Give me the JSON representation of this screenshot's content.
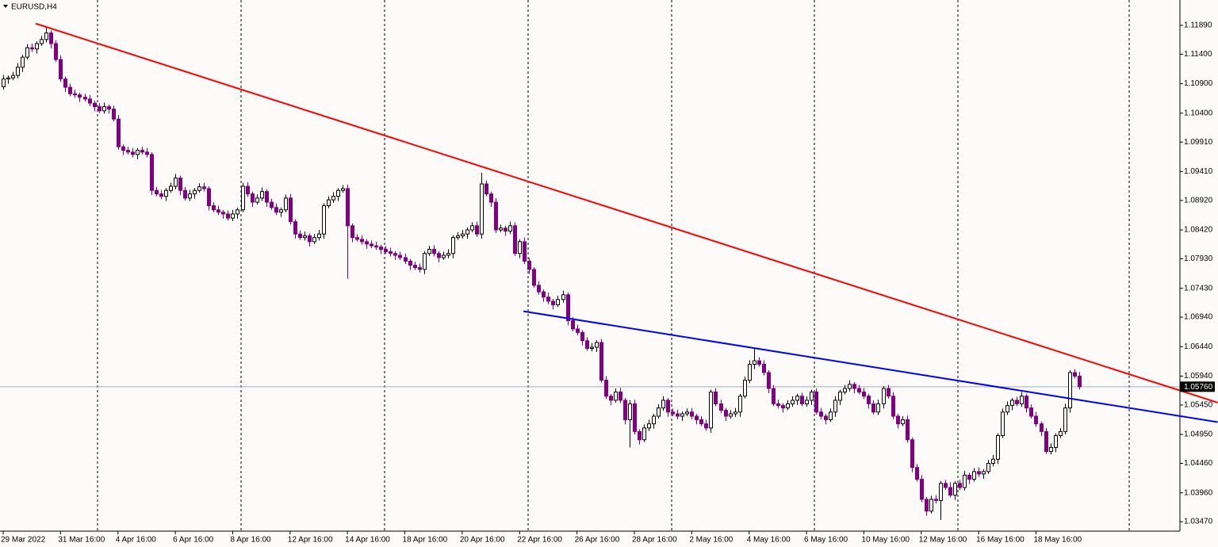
{
  "chart_data": {
    "type": "candlestick",
    "title": "EURUSD,H4",
    "categories": [
      "29 Mar 2022",
      null,
      null,
      null,
      null,
      null,
      null,
      null,
      null,
      null,
      null,
      null,
      "31 Mar 16:00",
      null,
      null,
      null,
      null,
      null,
      null,
      null,
      null,
      null,
      null,
      null,
      "4 Apr 16:00",
      null,
      null,
      null,
      null,
      null,
      null,
      null,
      null,
      null,
      null,
      null,
      "6 Apr 16:00",
      null,
      null,
      null,
      null,
      null,
      null,
      null,
      null,
      null,
      null,
      null,
      "8 Apr 16:00",
      null,
      null,
      null,
      null,
      null,
      null,
      null,
      null,
      null,
      null,
      null,
      "12 Apr 16:00",
      null,
      null,
      null,
      null,
      null,
      null,
      null,
      null,
      null,
      null,
      null,
      "14 Apr 16:00",
      null,
      null,
      null,
      null,
      null,
      null,
      null,
      null,
      null,
      null,
      null,
      "18 Apr 16:00",
      null,
      null,
      null,
      null,
      null,
      null,
      null,
      null,
      null,
      null,
      null,
      "20 Apr 16:00",
      null,
      null,
      null,
      null,
      null,
      null,
      null,
      null,
      null,
      null,
      null,
      "22 Apr 16:00",
      null,
      null,
      null,
      null,
      null,
      null,
      null,
      null,
      null,
      null,
      null,
      "26 Apr 16:00",
      null,
      null,
      null,
      null,
      null,
      null,
      null,
      null,
      null,
      null,
      null,
      "28 Apr 16:00",
      null,
      null,
      null,
      null,
      null,
      null,
      null,
      null,
      null,
      null,
      null,
      "2 May 16:00",
      null,
      null,
      null,
      null,
      null,
      null,
      null,
      null,
      null,
      null,
      null,
      "4 May 16:00",
      null,
      null,
      null,
      null,
      null,
      null,
      null,
      null,
      null,
      null,
      null,
      "6 May 16:00",
      null,
      null,
      null,
      null,
      null,
      null,
      null,
      null,
      null,
      null,
      null,
      "10 May 16:00",
      null,
      null,
      null,
      null,
      null,
      null,
      null,
      null,
      null,
      null,
      null,
      "12 May 16:00",
      null,
      null,
      null,
      null,
      null,
      null,
      null,
      null,
      null,
      null,
      null,
      "16 May 16:00",
      null,
      null,
      null,
      null,
      null,
      null,
      null,
      null,
      null,
      null,
      null,
      "18 May 16:00",
      null,
      null,
      null,
      null,
      null,
      null,
      null,
      null,
      null
    ],
    "open": [
      1.1085,
      1.1098,
      1.11,
      1.1104,
      1.1118,
      1.1135,
      1.1151,
      1.1149,
      1.1158,
      1.1165,
      1.1176,
      1.1158,
      1.1131,
      1.1098,
      1.1084,
      1.1073,
      1.1071,
      1.1067,
      1.1064,
      1.1057,
      1.1051,
      1.1044,
      1.1051,
      1.1047,
      1.103,
      1.0983,
      1.0977,
      1.0974,
      1.097,
      1.0977,
      1.0974,
      1.097,
      1.0909,
      1.0903,
      1.0899,
      1.0909,
      1.0916,
      1.093,
      1.0909,
      1.0896,
      1.0903,
      1.0909,
      1.0915,
      1.0912,
      1.0883,
      1.0876,
      1.0872,
      1.0869,
      1.0862,
      1.0869,
      1.0876,
      1.0916,
      1.0903,
      1.0889,
      1.0896,
      1.0907,
      1.0889,
      1.088,
      1.0872,
      1.0876,
      1.0896,
      1.0856,
      1.0835,
      1.0829,
      1.0832,
      1.0822,
      1.0829,
      1.0835,
      1.0883,
      1.0893,
      1.0899,
      1.0909,
      1.0912,
      1.0849,
      1.0829,
      1.0826,
      1.0822,
      1.0818,
      1.0815,
      1.0813,
      1.0809,
      1.0805,
      1.0802,
      1.0799,
      1.0795,
      1.0789,
      1.0782,
      1.0778,
      1.0775,
      1.0802,
      1.0809,
      1.0802,
      1.0795,
      1.0799,
      1.0802,
      1.0829,
      1.0832,
      1.0835,
      1.0842,
      1.0849,
      1.0835,
      1.092,
      1.0903,
      1.0889,
      1.0842,
      1.0845,
      1.084,
      1.0849,
      1.0802,
      1.0822,
      1.0789,
      1.0775,
      1.0748,
      1.0737,
      1.0728,
      1.0721,
      1.0715,
      1.0724,
      1.0732,
      1.0688,
      1.0674,
      1.0668,
      1.0654,
      1.0641,
      1.0643,
      1.0651,
      1.0587,
      1.056,
      1.0553,
      1.0567,
      1.0553,
      1.052,
      1.0547,
      1.05,
      1.0486,
      1.0506,
      1.0513,
      1.0526,
      1.054,
      1.0553,
      1.0533,
      1.053,
      1.0526,
      1.053,
      1.0533,
      1.0526,
      1.052,
      1.0513,
      1.0506,
      1.0567,
      1.0547,
      1.0536,
      1.0526,
      1.053,
      1.0533,
      1.056,
      1.0587,
      1.0614,
      1.062,
      1.0614,
      1.06,
      1.0573,
      1.0547,
      1.0544,
      1.054,
      1.0547,
      1.0553,
      1.056,
      1.0547,
      1.0553,
      1.0567,
      1.0533,
      1.0526,
      1.052,
      1.0533,
      1.0553,
      1.0567,
      1.0573,
      1.058,
      1.0573,
      1.0567,
      1.056,
      1.0547,
      1.0533,
      1.0547,
      1.0573,
      1.056,
      1.0526,
      1.0513,
      1.052,
      1.0486,
      1.0439,
      1.0419,
      1.0385,
      1.0365,
      1.0385,
      1.0383,
      1.0412,
      1.0405,
      1.0392,
      1.0412,
      1.0405,
      1.0426,
      1.0419,
      1.0432,
      1.0428,
      1.0432,
      1.0446,
      1.0453,
      1.0493,
      1.0533,
      1.0544,
      1.0553,
      1.0547,
      1.056,
      1.054,
      1.0526,
      1.0513,
      1.05,
      1.0466,
      1.0473,
      1.0493,
      1.05,
      1.054,
      1.06,
      1.0594
    ],
    "high": [
      1.1105,
      1.1104,
      1.111,
      1.1125,
      1.1139,
      1.1157,
      1.1158,
      1.1162,
      1.1171,
      1.1185,
      1.118,
      1.1164,
      1.1138,
      1.1102,
      1.109,
      1.108,
      1.1075,
      1.1073,
      1.1071,
      1.1061,
      1.1057,
      1.1058,
      1.1055,
      1.1053,
      1.1037,
      1.0987,
      1.0983,
      1.0981,
      1.0981,
      1.0983,
      1.0981,
      1.0974,
      1.0915,
      1.091,
      1.0913,
      1.0922,
      1.0937,
      1.0934,
      1.0915,
      1.091,
      1.0913,
      1.0921,
      1.0922,
      1.0916,
      1.0889,
      1.0883,
      1.0876,
      1.0875,
      1.0876,
      1.088,
      1.0922,
      1.0923,
      1.0907,
      1.0902,
      1.0914,
      1.0911,
      1.0895,
      1.0887,
      1.088,
      1.0902,
      1.0903,
      1.086,
      1.0841,
      1.0839,
      1.0836,
      1.0835,
      1.0842,
      1.0887,
      1.0899,
      1.0906,
      1.0913,
      1.0918,
      1.0919,
      1.0853,
      1.0835,
      1.0833,
      1.0826,
      1.0824,
      1.0822,
      1.0817,
      1.0815,
      1.0812,
      1.0806,
      1.0805,
      1.0802,
      1.0793,
      1.0788,
      1.0785,
      1.0806,
      1.0815,
      1.0816,
      1.0806,
      1.0805,
      1.0809,
      1.0833,
      1.0838,
      1.0842,
      1.0846,
      1.0855,
      1.0856,
      1.0939,
      1.0926,
      1.0907,
      1.0896,
      1.0851,
      1.0849,
      1.0856,
      1.0855,
      1.0826,
      1.0829,
      1.0795,
      1.0779,
      1.0755,
      1.0741,
      1.0736,
      1.0725,
      1.073,
      1.0739,
      1.0736,
      1.0694,
      1.0681,
      1.0672,
      1.066,
      1.065,
      1.0655,
      1.0657,
      1.0594,
      1.0564,
      1.0573,
      1.0574,
      1.0557,
      1.0553,
      1.0554,
      1.0504,
      1.0512,
      1.052,
      1.053,
      1.0546,
      1.056,
      1.0557,
      1.0539,
      1.0537,
      1.0534,
      1.0539,
      1.054,
      1.053,
      1.0526,
      1.052,
      1.0571,
      1.0573,
      1.0554,
      1.054,
      1.0536,
      1.054,
      1.0564,
      1.0593,
      1.0621,
      1.064,
      1.0626,
      1.0621,
      1.0604,
      1.0579,
      1.0554,
      1.0548,
      1.0553,
      1.056,
      1.0564,
      1.0566,
      1.056,
      1.0571,
      1.0573,
      1.054,
      1.053,
      1.0539,
      1.056,
      1.0571,
      1.0579,
      1.0587,
      1.0584,
      1.0579,
      1.0574,
      1.0564,
      1.0553,
      1.0554,
      1.0577,
      1.0579,
      1.0567,
      1.053,
      1.0526,
      1.0527,
      1.049,
      1.0445,
      1.0426,
      1.0389,
      1.0391,
      1.0392,
      1.0416,
      1.0418,
      1.0414,
      1.0416,
      1.0418,
      1.0433,
      1.043,
      1.0438,
      1.0439,
      1.0436,
      1.0452,
      1.046,
      1.0497,
      1.0539,
      1.0551,
      1.0557,
      1.0559,
      1.0567,
      1.0564,
      1.0546,
      1.0533,
      1.0517,
      1.0506,
      1.048,
      1.0497,
      1.0506,
      1.0547,
      1.0604,
      1.0606,
      1.0601
    ],
    "low": [
      1.108,
      1.109,
      1.1096,
      1.1099,
      1.111,
      1.1131,
      1.1144,
      1.1141,
      1.1154,
      1.116,
      1.115,
      1.1127,
      1.1093,
      1.1076,
      1.1069,
      1.1066,
      1.1059,
      1.106,
      1.1052,
      1.1043,
      1.104,
      1.1039,
      1.1039,
      1.1026,
      1.0978,
      1.0969,
      1.097,
      1.0965,
      1.0962,
      1.097,
      1.0965,
      1.0901,
      1.0899,
      1.0894,
      1.0891,
      1.0905,
      1.0911,
      1.0901,
      1.0892,
      1.0891,
      1.0895,
      1.0905,
      1.0907,
      1.0875,
      1.0872,
      1.0867,
      1.0861,
      1.0858,
      1.0857,
      1.0861,
      1.0872,
      1.0898,
      1.0881,
      1.0885,
      1.0891,
      1.0881,
      1.0876,
      1.0867,
      1.0864,
      1.0872,
      1.0851,
      1.0827,
      1.0825,
      1.0824,
      1.0814,
      1.0818,
      1.0824,
      1.0827,
      1.0879,
      1.0888,
      1.0891,
      1.0905,
      1.0759,
      1.0821,
      1.0822,
      1.0817,
      1.081,
      1.0811,
      1.0808,
      1.0801,
      1.0801,
      1.0797,
      1.0791,
      1.0791,
      1.0784,
      1.0774,
      1.0774,
      1.077,
      1.0767,
      1.0798,
      1.0797,
      1.0787,
      1.0791,
      1.0794,
      1.0794,
      1.0825,
      1.0827,
      1.0827,
      1.0838,
      1.083,
      1.0827,
      1.0899,
      1.0881,
      1.0837,
      1.0838,
      1.0832,
      1.0835,
      1.0798,
      1.0794,
      1.0784,
      1.0767,
      1.0744,
      1.0732,
      1.072,
      1.0716,
      1.0707,
      1.0711,
      1.0719,
      1.068,
      1.067,
      1.0663,
      1.0646,
      1.0637,
      1.0636,
      1.0635,
      1.0583,
      1.0555,
      1.0545,
      1.0549,
      1.0548,
      1.0512,
      1.0473,
      1.0495,
      1.0478,
      1.0482,
      1.0501,
      1.0505,
      1.0522,
      1.0535,
      1.0525,
      1.0526,
      1.0521,
      1.0518,
      1.0526,
      1.0521,
      1.0512,
      1.0509,
      1.0501,
      1.0498,
      1.0543,
      1.0531,
      1.0518,
      1.0522,
      1.0525,
      1.0525,
      1.0556,
      1.0582,
      1.0606,
      1.061,
      1.0595,
      1.0565,
      1.0543,
      1.0539,
      1.0532,
      1.0536,
      1.0542,
      1.0545,
      1.0543,
      1.0542,
      1.0545,
      1.0529,
      1.0521,
      1.0512,
      1.0516,
      1.0525,
      1.0545,
      1.0563,
      1.0568,
      1.0565,
      1.0563,
      1.0555,
      1.0539,
      1.0529,
      1.0528,
      1.0539,
      1.0556,
      1.0521,
      1.0505,
      1.0509,
      1.0481,
      1.0431,
      1.0415,
      1.038,
      1.0357,
      1.0361,
      1.0378,
      1.035,
      1.0401,
      1.0388,
      1.0384,
      1.0401,
      1.04,
      1.0411,
      1.0415,
      1.0423,
      1.042,
      1.0428,
      1.0441,
      1.0445,
      1.0489,
      1.0528,
      1.0536,
      1.0543,
      1.0542,
      1.0532,
      1.0522,
      1.0508,
      1.0492,
      1.0462,
      1.0461,
      1.0465,
      1.0489,
      1.0495,
      1.0532,
      1.059,
      1.0571
    ],
    "close": [
      1.1098,
      1.11,
      1.1104,
      1.1118,
      1.1135,
      1.1151,
      1.1149,
      1.1158,
      1.1165,
      1.1176,
      1.1158,
      1.1131,
      1.1098,
      1.1084,
      1.1073,
      1.1071,
      1.1067,
      1.1064,
      1.1057,
      1.1051,
      1.1044,
      1.1051,
      1.1047,
      1.103,
      1.0983,
      1.0977,
      1.0974,
      1.097,
      1.0977,
      1.0974,
      1.097,
      1.0909,
      1.0903,
      1.0899,
      1.0909,
      1.0916,
      1.093,
      1.0909,
      1.0896,
      1.0903,
      1.0909,
      1.0915,
      1.0912,
      1.0883,
      1.0876,
      1.0872,
      1.0869,
      1.0862,
      1.0869,
      1.0876,
      1.0916,
      1.0903,
      1.0889,
      1.0896,
      1.0907,
      1.0889,
      1.088,
      1.0872,
      1.0876,
      1.0896,
      1.0856,
      1.0835,
      1.0829,
      1.0832,
      1.0822,
      1.0829,
      1.0835,
      1.0883,
      1.0893,
      1.0899,
      1.0909,
      1.0912,
      1.0849,
      1.0829,
      1.0826,
      1.0822,
      1.0818,
      1.0815,
      1.0813,
      1.0809,
      1.0805,
      1.0802,
      1.0799,
      1.0795,
      1.0789,
      1.0782,
      1.0778,
      1.0775,
      1.0802,
      1.0809,
      1.0802,
      1.0795,
      1.0799,
      1.0802,
      1.0829,
      1.0832,
      1.0835,
      1.0842,
      1.0849,
      1.0835,
      1.092,
      1.0903,
      1.0889,
      1.0842,
      1.0845,
      1.084,
      1.0849,
      1.0802,
      1.0822,
      1.0789,
      1.0775,
      1.0748,
      1.0737,
      1.0728,
      1.0721,
      1.0715,
      1.0724,
      1.0732,
      1.0688,
      1.0674,
      1.0668,
      1.0654,
      1.0641,
      1.0643,
      1.0651,
      1.0587,
      1.056,
      1.0553,
      1.0567,
      1.0553,
      1.052,
      1.0547,
      1.05,
      1.0486,
      1.0506,
      1.0513,
      1.0526,
      1.054,
      1.0553,
      1.0533,
      1.053,
      1.0526,
      1.053,
      1.0533,
      1.0526,
      1.052,
      1.0513,
      1.0506,
      1.0567,
      1.0547,
      1.0536,
      1.0526,
      1.053,
      1.0533,
      1.056,
      1.0587,
      1.0614,
      1.062,
      1.0614,
      1.06,
      1.0573,
      1.0547,
      1.0544,
      1.054,
      1.0547,
      1.0553,
      1.056,
      1.0547,
      1.0553,
      1.0567,
      1.0533,
      1.0526,
      1.052,
      1.0533,
      1.0553,
      1.0567,
      1.0573,
      1.058,
      1.0573,
      1.0567,
      1.056,
      1.0547,
      1.0533,
      1.0547,
      1.0573,
      1.056,
      1.0526,
      1.0513,
      1.052,
      1.0486,
      1.0439,
      1.0419,
      1.0385,
      1.0365,
      1.0385,
      1.0383,
      1.0412,
      1.0405,
      1.0392,
      1.0412,
      1.0405,
      1.0426,
      1.0419,
      1.0432,
      1.0428,
      1.0432,
      1.0446,
      1.0453,
      1.0493,
      1.0533,
      1.0544,
      1.0553,
      1.0547,
      1.056,
      1.054,
      1.0526,
      1.0513,
      1.05,
      1.0466,
      1.0473,
      1.0493,
      1.05,
      1.054,
      1.06,
      1.0594,
      1.0576
    ],
    "up_color": "#ffffff",
    "down_color": "#800080",
    "ylim": [
      1.0331,
      1.1232
    ],
    "yticks": [
      {
        "value": 1.1189,
        "label": "1.11890"
      },
      {
        "value": 1.114,
        "label": "1.11400"
      },
      {
        "value": 1.109,
        "label": "1.10900"
      },
      {
        "value": 1.104,
        "label": "1.10400"
      },
      {
        "value": 1.0991,
        "label": "1.09910"
      },
      {
        "value": 1.0941,
        "label": "1.09410"
      },
      {
        "value": 1.0892,
        "label": "1.08920"
      },
      {
        "value": 1.0842,
        "label": "1.08420"
      },
      {
        "value": 1.0793,
        "label": "1.07930"
      },
      {
        "value": 1.0743,
        "label": "1.07430"
      },
      {
        "value": 1.0694,
        "label": "1.06940"
      },
      {
        "value": 1.0644,
        "label": "1.06440"
      },
      {
        "value": 1.0594,
        "label": "1.05940"
      },
      {
        "value": 1.0545,
        "label": "1.05450"
      },
      {
        "value": 1.0495,
        "label": "1.04950"
      },
      {
        "value": 1.0446,
        "label": "1.04460"
      },
      {
        "value": 1.0396,
        "label": "1.03960"
      },
      {
        "value": 1.0347,
        "label": "1.03470"
      }
    ],
    "grid": true,
    "last_price": {
      "value": 1.0576,
      "label": "1.05760"
    },
    "trend_lines": [
      {
        "color": "#ff0000",
        "from": [
          6.8,
          1.1192
        ],
        "to": [
          254,
          1.0549
        ]
      },
      {
        "color": "#0000ff",
        "from": [
          108.8,
          1.0704
        ],
        "to": [
          254,
          1.0516
        ]
      }
    ]
  }
}
